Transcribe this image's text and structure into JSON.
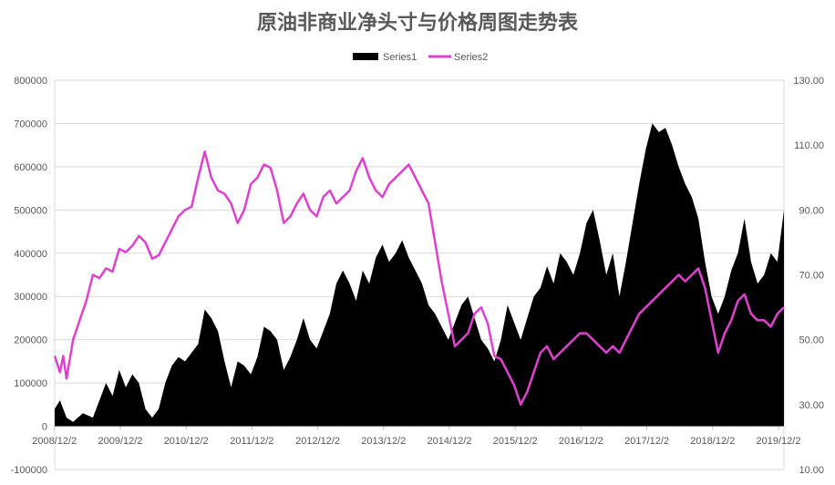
{
  "chart_data": {
    "type": "area+line",
    "title": "原油非商业净头寸与价格周图走势表",
    "legend": {
      "placement": "top-center",
      "entries": [
        "Series1",
        "Series2"
      ]
    },
    "series_colors": {
      "Series1": "#000000",
      "Series2": "#e040d0"
    },
    "x_axis": {
      "labels": [
        "2008/12/2",
        "2009/12/2",
        "2010/12/2",
        "2011/12/2",
        "2012/12/2",
        "2013/12/2",
        "2014/12/2",
        "2015/12/2",
        "2016/12/2",
        "2017/12/2",
        "2018/12/2",
        "2019/12/2"
      ],
      "range_years": [
        2008.92,
        2020.0
      ]
    },
    "y_left": {
      "ylim": [
        -100000,
        800000
      ],
      "ticks": [
        "800000",
        "700000",
        "600000",
        "500000",
        "400000",
        "300000",
        "200000",
        "100000",
        "0",
        "-100000"
      ]
    },
    "y_right": {
      "ylim": [
        10,
        130
      ],
      "ticks": [
        "130.00",
        "110.00",
        "90.00",
        "70.00",
        "50.00",
        "30.00",
        "10.00"
      ]
    },
    "grid": "horizontal",
    "series": [
      {
        "name": "Series1",
        "kind": "area",
        "axis": "left",
        "points": [
          [
            2008.92,
            40000
          ],
          [
            2009.0,
            60000
          ],
          [
            2009.1,
            20000
          ],
          [
            2009.2,
            10000
          ],
          [
            2009.35,
            30000
          ],
          [
            2009.5,
            20000
          ],
          [
            2009.6,
            60000
          ],
          [
            2009.7,
            100000
          ],
          [
            2009.8,
            70000
          ],
          [
            2009.9,
            130000
          ],
          [
            2010.0,
            90000
          ],
          [
            2010.1,
            120000
          ],
          [
            2010.2,
            100000
          ],
          [
            2010.3,
            40000
          ],
          [
            2010.4,
            20000
          ],
          [
            2010.5,
            40000
          ],
          [
            2010.6,
            100000
          ],
          [
            2010.7,
            140000
          ],
          [
            2010.8,
            160000
          ],
          [
            2010.9,
            150000
          ],
          [
            2011.0,
            170000
          ],
          [
            2011.1,
            190000
          ],
          [
            2011.2,
            270000
          ],
          [
            2011.3,
            250000
          ],
          [
            2011.4,
            220000
          ],
          [
            2011.5,
            150000
          ],
          [
            2011.6,
            90000
          ],
          [
            2011.7,
            150000
          ],
          [
            2011.8,
            140000
          ],
          [
            2011.9,
            120000
          ],
          [
            2012.0,
            160000
          ],
          [
            2012.1,
            230000
          ],
          [
            2012.2,
            220000
          ],
          [
            2012.3,
            200000
          ],
          [
            2012.4,
            130000
          ],
          [
            2012.5,
            160000
          ],
          [
            2012.6,
            200000
          ],
          [
            2012.7,
            250000
          ],
          [
            2012.8,
            200000
          ],
          [
            2012.9,
            180000
          ],
          [
            2013.0,
            220000
          ],
          [
            2013.1,
            260000
          ],
          [
            2013.2,
            330000
          ],
          [
            2013.3,
            360000
          ],
          [
            2013.4,
            330000
          ],
          [
            2013.5,
            290000
          ],
          [
            2013.6,
            360000
          ],
          [
            2013.7,
            330000
          ],
          [
            2013.8,
            390000
          ],
          [
            2013.9,
            420000
          ],
          [
            2014.0,
            380000
          ],
          [
            2014.1,
            400000
          ],
          [
            2014.2,
            430000
          ],
          [
            2014.3,
            390000
          ],
          [
            2014.4,
            360000
          ],
          [
            2014.5,
            330000
          ],
          [
            2014.6,
            280000
          ],
          [
            2014.7,
            260000
          ],
          [
            2014.8,
            230000
          ],
          [
            2014.9,
            200000
          ],
          [
            2015.0,
            240000
          ],
          [
            2015.1,
            280000
          ],
          [
            2015.2,
            300000
          ],
          [
            2015.3,
            250000
          ],
          [
            2015.4,
            200000
          ],
          [
            2015.5,
            180000
          ],
          [
            2015.6,
            150000
          ],
          [
            2015.7,
            200000
          ],
          [
            2015.8,
            280000
          ],
          [
            2015.9,
            240000
          ],
          [
            2016.0,
            200000
          ],
          [
            2016.1,
            250000
          ],
          [
            2016.2,
            300000
          ],
          [
            2016.3,
            320000
          ],
          [
            2016.4,
            370000
          ],
          [
            2016.5,
            330000
          ],
          [
            2016.6,
            400000
          ],
          [
            2016.7,
            380000
          ],
          [
            2016.8,
            350000
          ],
          [
            2016.9,
            400000
          ],
          [
            2017.0,
            470000
          ],
          [
            2017.1,
            500000
          ],
          [
            2017.2,
            430000
          ],
          [
            2017.3,
            350000
          ],
          [
            2017.4,
            400000
          ],
          [
            2017.5,
            300000
          ],
          [
            2017.6,
            380000
          ],
          [
            2017.7,
            470000
          ],
          [
            2017.8,
            560000
          ],
          [
            2017.9,
            640000
          ],
          [
            2018.0,
            700000
          ],
          [
            2018.1,
            680000
          ],
          [
            2018.2,
            690000
          ],
          [
            2018.3,
            650000
          ],
          [
            2018.4,
            600000
          ],
          [
            2018.5,
            560000
          ],
          [
            2018.6,
            530000
          ],
          [
            2018.7,
            480000
          ],
          [
            2018.8,
            380000
          ],
          [
            2018.9,
            300000
          ],
          [
            2019.0,
            260000
          ],
          [
            2019.1,
            300000
          ],
          [
            2019.2,
            360000
          ],
          [
            2019.3,
            400000
          ],
          [
            2019.4,
            480000
          ],
          [
            2019.5,
            380000
          ],
          [
            2019.6,
            330000
          ],
          [
            2019.7,
            350000
          ],
          [
            2019.8,
            400000
          ],
          [
            2019.9,
            380000
          ],
          [
            2020.0,
            500000
          ]
        ]
      },
      {
        "name": "Series2",
        "kind": "line",
        "axis": "right",
        "points": [
          [
            2008.92,
            45
          ],
          [
            2009.0,
            40
          ],
          [
            2009.05,
            45
          ],
          [
            2009.1,
            38
          ],
          [
            2009.2,
            50
          ],
          [
            2009.3,
            56
          ],
          [
            2009.4,
            62
          ],
          [
            2009.5,
            70
          ],
          [
            2009.6,
            69
          ],
          [
            2009.7,
            72
          ],
          [
            2009.8,
            71
          ],
          [
            2009.9,
            78
          ],
          [
            2010.0,
            77
          ],
          [
            2010.1,
            79
          ],
          [
            2010.2,
            82
          ],
          [
            2010.3,
            80
          ],
          [
            2010.4,
            75
          ],
          [
            2010.5,
            76
          ],
          [
            2010.6,
            80
          ],
          [
            2010.7,
            84
          ],
          [
            2010.8,
            88
          ],
          [
            2010.9,
            90
          ],
          [
            2011.0,
            91
          ],
          [
            2011.1,
            100
          ],
          [
            2011.2,
            108
          ],
          [
            2011.3,
            100
          ],
          [
            2011.4,
            96
          ],
          [
            2011.5,
            95
          ],
          [
            2011.6,
            92
          ],
          [
            2011.7,
            86
          ],
          [
            2011.8,
            90
          ],
          [
            2011.9,
            98
          ],
          [
            2012.0,
            100
          ],
          [
            2012.1,
            104
          ],
          [
            2012.2,
            103
          ],
          [
            2012.3,
            96
          ],
          [
            2012.4,
            86
          ],
          [
            2012.5,
            88
          ],
          [
            2012.6,
            92
          ],
          [
            2012.7,
            95
          ],
          [
            2012.8,
            90
          ],
          [
            2012.9,
            88
          ],
          [
            2013.0,
            94
          ],
          [
            2013.1,
            96
          ],
          [
            2013.2,
            92
          ],
          [
            2013.3,
            94
          ],
          [
            2013.4,
            96
          ],
          [
            2013.5,
            102
          ],
          [
            2013.6,
            106
          ],
          [
            2013.7,
            100
          ],
          [
            2013.8,
            96
          ],
          [
            2013.9,
            94
          ],
          [
            2014.0,
            98
          ],
          [
            2014.1,
            100
          ],
          [
            2014.2,
            102
          ],
          [
            2014.3,
            104
          ],
          [
            2014.4,
            100
          ],
          [
            2014.5,
            96
          ],
          [
            2014.6,
            92
          ],
          [
            2014.7,
            80
          ],
          [
            2014.8,
            68
          ],
          [
            2014.9,
            58
          ],
          [
            2015.0,
            48
          ],
          [
            2015.1,
            50
          ],
          [
            2015.2,
            52
          ],
          [
            2015.3,
            58
          ],
          [
            2015.4,
            60
          ],
          [
            2015.5,
            55
          ],
          [
            2015.6,
            45
          ],
          [
            2015.7,
            44
          ],
          [
            2015.8,
            40
          ],
          [
            2015.9,
            36
          ],
          [
            2016.0,
            30
          ],
          [
            2016.1,
            34
          ],
          [
            2016.2,
            40
          ],
          [
            2016.3,
            46
          ],
          [
            2016.4,
            48
          ],
          [
            2016.5,
            44
          ],
          [
            2016.6,
            46
          ],
          [
            2016.7,
            48
          ],
          [
            2016.8,
            50
          ],
          [
            2016.9,
            52
          ],
          [
            2017.0,
            52
          ],
          [
            2017.1,
            50
          ],
          [
            2017.2,
            48
          ],
          [
            2017.3,
            46
          ],
          [
            2017.4,
            48
          ],
          [
            2017.5,
            46
          ],
          [
            2017.6,
            50
          ],
          [
            2017.7,
            54
          ],
          [
            2017.8,
            58
          ],
          [
            2017.9,
            60
          ],
          [
            2018.0,
            62
          ],
          [
            2018.1,
            64
          ],
          [
            2018.2,
            66
          ],
          [
            2018.3,
            68
          ],
          [
            2018.4,
            70
          ],
          [
            2018.5,
            68
          ],
          [
            2018.6,
            70
          ],
          [
            2018.7,
            72
          ],
          [
            2018.8,
            66
          ],
          [
            2018.9,
            56
          ],
          [
            2019.0,
            46
          ],
          [
            2019.1,
            52
          ],
          [
            2019.2,
            56
          ],
          [
            2019.3,
            62
          ],
          [
            2019.4,
            64
          ],
          [
            2019.5,
            58
          ],
          [
            2019.6,
            56
          ],
          [
            2019.7,
            56
          ],
          [
            2019.8,
            54
          ],
          [
            2019.9,
            58
          ],
          [
            2020.0,
            60
          ]
        ]
      }
    ]
  }
}
